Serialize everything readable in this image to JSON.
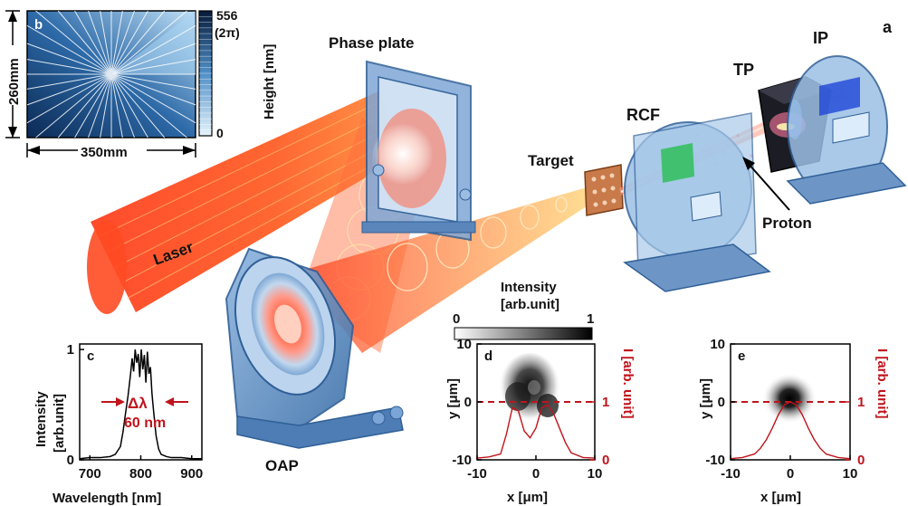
{
  "labels": {
    "phase_plate": "Phase plate",
    "ip": "IP",
    "a": "a",
    "tp": "TP",
    "rcf": "RCF",
    "target": "Target",
    "proton": "Proton",
    "laser": "Laser",
    "oap": "OAP"
  },
  "panel_b": {
    "letter": "b",
    "height_dim": "260mm",
    "width_dim": "350mm",
    "colorbar_max": "556",
    "colorbar_max_sub": "(2π)",
    "colorbar_min": "0",
    "colorbar_label": "Height [nm]",
    "colors": {
      "dark": "#0b2a55",
      "light": "#d9eefb",
      "ray": "#ffffff"
    }
  },
  "intensity_bar": {
    "title_line1": "Intensity",
    "title_line2": "[arb.unit]",
    "min": "0",
    "max": "1"
  },
  "chart_data": [
    {
      "type": "line",
      "panel": "c",
      "xlabel": "Wavelength [nm]",
      "ylabel_line1": "Intensity",
      "ylabel_line2": "[arb.unit]",
      "xlim": [
        680,
        920
      ],
      "ylim": [
        0,
        1.05
      ],
      "xticks": [
        "700",
        "800",
        "900"
      ],
      "yticks": [
        "0",
        "1"
      ],
      "annotation_symbol": "Δλ",
      "annotation_value": "60 nm",
      "x": [
        680,
        700,
        720,
        740,
        750,
        760,
        765,
        770,
        775,
        780,
        783,
        786,
        789,
        792,
        795,
        798,
        801,
        804,
        807,
        810,
        813,
        816,
        819,
        822,
        825,
        830,
        835,
        840,
        850,
        860,
        880,
        900,
        920
      ],
      "y": [
        0.01,
        0.02,
        0.02,
        0.03,
        0.05,
        0.12,
        0.25,
        0.42,
        0.58,
        0.78,
        0.92,
        0.8,
        1.0,
        0.88,
        0.96,
        0.75,
        1.0,
        0.82,
        0.95,
        0.7,
        0.98,
        0.78,
        0.84,
        0.6,
        0.45,
        0.22,
        0.1,
        0.05,
        0.03,
        0.02,
        0.02,
        0.01,
        0.01
      ]
    },
    {
      "type": "heatmap",
      "panel": "d",
      "xlabel": "x [μm]",
      "ylabel": "y [μm]",
      "y2label": "I [arb. unit]",
      "xlim": [
        -10,
        10
      ],
      "ylim": [
        -10,
        10
      ],
      "xticks": [
        "-10",
        "0",
        "10"
      ],
      "yticks": [
        "10",
        "0",
        "-10"
      ],
      "y2ticks": [
        "1",
        "0"
      ],
      "lineout_x": [
        -10,
        -8,
        -6,
        -5,
        -4,
        -3,
        -2,
        -1,
        0,
        1,
        2,
        3,
        4,
        5,
        6,
        8,
        10
      ],
      "lineout_y": [
        0.03,
        0.05,
        0.1,
        0.45,
        0.9,
        0.85,
        0.5,
        0.38,
        0.55,
        0.9,
        0.95,
        0.8,
        0.55,
        0.3,
        0.12,
        0.04,
        0.03
      ]
    },
    {
      "type": "heatmap",
      "panel": "e",
      "xlabel": "x [μm]",
      "ylabel": "y [μm]",
      "y2label": "I [arb. unit]",
      "xlim": [
        -10,
        10
      ],
      "ylim": [
        -10,
        10
      ],
      "xticks": [
        "-10",
        "0",
        "10"
      ],
      "yticks": [
        "10",
        "0",
        "-10"
      ],
      "y2ticks": [
        "1",
        "0"
      ],
      "lineout_x": [
        -10,
        -8,
        -6,
        -5,
        -4,
        -3,
        -2,
        -1,
        0,
        1,
        2,
        3,
        4,
        5,
        6,
        8,
        10
      ],
      "lineout_y": [
        0.02,
        0.04,
        0.1,
        0.2,
        0.35,
        0.55,
        0.78,
        0.95,
        1.0,
        0.95,
        0.78,
        0.55,
        0.35,
        0.2,
        0.1,
        0.04,
        0.02
      ]
    }
  ]
}
